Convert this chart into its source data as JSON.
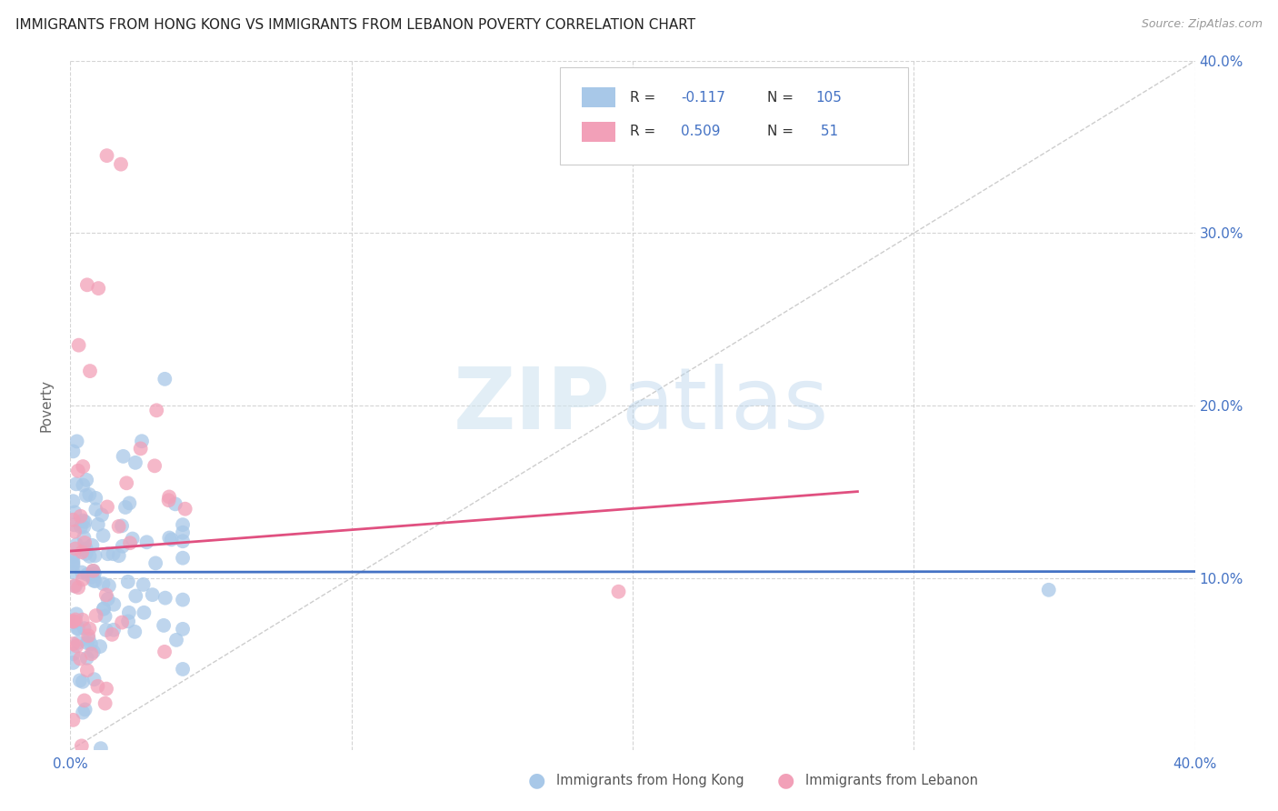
{
  "title": "IMMIGRANTS FROM HONG KONG VS IMMIGRANTS FROM LEBANON POVERTY CORRELATION CHART",
  "source": "Source: ZipAtlas.com",
  "ylabel": "Poverty",
  "legend1_label": "Immigrants from Hong Kong",
  "legend2_label": "Immigrants from Lebanon",
  "R_hk": -0.117,
  "N_hk": 105,
  "R_lb": 0.509,
  "N_lb": 51,
  "hk_color": "#a8c8e8",
  "lb_color": "#f2a0b8",
  "hk_line_color": "#4472c4",
  "lb_line_color": "#e05080",
  "diagonal_color": "#c8c8c8",
  "text_blue": "#4472c4",
  "text_dark": "#333333",
  "xlim": [
    0.0,
    0.4
  ],
  "ylim": [
    0.0,
    0.4
  ],
  "seed_hk": 77,
  "seed_lb": 33
}
